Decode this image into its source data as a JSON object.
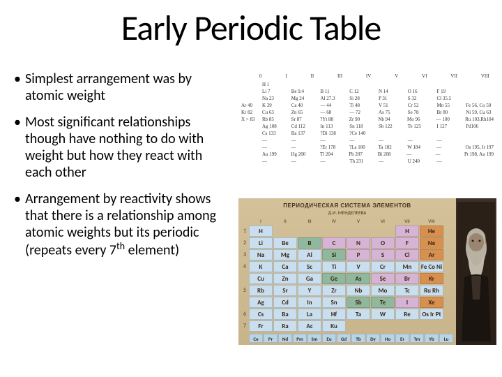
{
  "title": "Early Periodic Table",
  "bullets": [
    "Simplest arrangement was by atomic weight",
    "Most significant relationships though have nothing to do with weight but how they react with each other",
    "Arrangement by reactivity shows that there is a relationship among atomic weights but its periodic (repeats every 7__SUP__th__END__ element)"
  ],
  "early_table": {
    "headers": [
      "0",
      "I",
      "II",
      "III",
      "IV",
      "V",
      "VI",
      "VII",
      "VIII"
    ],
    "rows": [
      [
        "",
        "H 1",
        "",
        "",
        "",
        "",
        "",
        "",
        ""
      ],
      [
        "",
        "Li 7",
        "Be 9.4",
        "B 11",
        "C 12",
        "N 14",
        "O 16",
        "F 19",
        ""
      ],
      [
        "",
        "Na 23",
        "Mg 24",
        "Al 27.3",
        "Si 28",
        "P 31",
        "S 32",
        "Cl 35.5",
        ""
      ],
      [
        "Ar 40",
        "K 39",
        "Ca 40",
        "— 44",
        "Ti 48",
        "V 51",
        "Cr 52",
        "Mn 55",
        "Fe 56, Co 59"
      ],
      [
        "Kr 82",
        "Cu 63",
        "Zn 65",
        "— 68",
        "— 72",
        "As 75",
        "Se 78",
        "Br 80",
        "Ni 59, Cu 63"
      ],
      [
        "X > 83",
        "Rb 85",
        "Sr 87",
        "?Yt 88",
        "Zr 90",
        "Nb 94",
        "Mo 96",
        "— 100",
        "Ru 103,Rh104"
      ],
      [
        "",
        "Ag 108",
        "Cd 112",
        "In 113",
        "Sn 118",
        "Sb 122",
        "Te 125",
        "I 127",
        "Pd106"
      ],
      [
        "",
        "Cs 133",
        "Ba 137",
        "?Di 138",
        "?Ce 140",
        "",
        "",
        "",
        ""
      ],
      [
        "",
        "—",
        "—",
        "—",
        "—",
        "—",
        "—",
        "—",
        ""
      ],
      [
        "",
        "—",
        "—",
        "?Er 178",
        "?La 180",
        "Ta 182",
        "W 184",
        "—",
        "Os 195, Ir 197"
      ],
      [
        "",
        "Au 199",
        "Hg 200",
        "Tl 204",
        "Pb 207",
        "Bi 208",
        "—",
        "—",
        "Pt 198, Au 199"
      ],
      [
        "",
        "—",
        "—",
        "—",
        "Th 231",
        "—",
        "U 240",
        "—",
        ""
      ]
    ]
  },
  "color_table": {
    "title": "ПЕРИОДИЧЕСКАЯ СИСТЕМА ЭЛЕМЕНТОВ",
    "subtitle": "Д.И. МЕНДЕЛЕЕВА",
    "group_headers": [
      "I",
      "II",
      "III",
      "IV",
      "V",
      "VI",
      "VII",
      "VIII"
    ],
    "rows": [
      {
        "n": "1",
        "cells": [
          {
            "s": "H",
            "c": "#c9dff0"
          },
          {
            "s": "",
            "c": ""
          },
          {
            "s": "",
            "c": ""
          },
          {
            "s": "",
            "c": ""
          },
          {
            "s": "",
            "c": ""
          },
          {
            "s": "",
            "c": ""
          },
          {
            "s": "H",
            "c": "#d5b4d5"
          },
          {
            "s": "He",
            "c": "#d89050"
          }
        ]
      },
      {
        "n": "2",
        "cells": [
          {
            "s": "Li",
            "c": "#c9dff0"
          },
          {
            "s": "Be",
            "c": "#c9dff0"
          },
          {
            "s": "B",
            "c": "#8fb89f"
          },
          {
            "s": "C",
            "c": "#d5b4d5"
          },
          {
            "s": "N",
            "c": "#d5b4d5"
          },
          {
            "s": "O",
            "c": "#d5b4d5"
          },
          {
            "s": "F",
            "c": "#d5b4d5"
          },
          {
            "s": "Ne",
            "c": "#d89050"
          }
        ]
      },
      {
        "n": "3",
        "cells": [
          {
            "s": "Na",
            "c": "#c9dff0"
          },
          {
            "s": "Mg",
            "c": "#c9dff0"
          },
          {
            "s": "Al",
            "c": "#c9dff0"
          },
          {
            "s": "Si",
            "c": "#8fb89f"
          },
          {
            "s": "P",
            "c": "#d5b4d5"
          },
          {
            "s": "S",
            "c": "#d5b4d5"
          },
          {
            "s": "Cl",
            "c": "#d5b4d5"
          },
          {
            "s": "Ar",
            "c": "#d89050"
          }
        ]
      },
      {
        "n": "4",
        "cells": [
          {
            "s": "K",
            "c": "#c9dff0"
          },
          {
            "s": "Ca",
            "c": "#c9dff0"
          },
          {
            "s": "Sc",
            "c": "#c9dff0"
          },
          {
            "s": "Ti",
            "c": "#c9dff0"
          },
          {
            "s": "V",
            "c": "#c9dff0"
          },
          {
            "s": "Cr",
            "c": "#c9dff0"
          },
          {
            "s": "Mn",
            "c": "#c9dff0"
          },
          {
            "s": "Fe Co Ni",
            "c": "#c9dff0"
          }
        ]
      },
      {
        "n": "",
        "cells": [
          {
            "s": "Cu",
            "c": "#c9dff0"
          },
          {
            "s": "Zn",
            "c": "#c9dff0"
          },
          {
            "s": "Ga",
            "c": "#c9dff0"
          },
          {
            "s": "Ge",
            "c": "#8fb89f"
          },
          {
            "s": "As",
            "c": "#8fb89f"
          },
          {
            "s": "Se",
            "c": "#d5b4d5"
          },
          {
            "s": "Br",
            "c": "#d5b4d5"
          },
          {
            "s": "Kr",
            "c": "#d89050"
          }
        ]
      },
      {
        "n": "5",
        "cells": [
          {
            "s": "Rb",
            "c": "#c9dff0"
          },
          {
            "s": "Sr",
            "c": "#c9dff0"
          },
          {
            "s": "Y",
            "c": "#c9dff0"
          },
          {
            "s": "Zr",
            "c": "#c9dff0"
          },
          {
            "s": "Nb",
            "c": "#c9dff0"
          },
          {
            "s": "Mo",
            "c": "#c9dff0"
          },
          {
            "s": "Tc",
            "c": "#c9dff0"
          },
          {
            "s": "Ru Rh Pd",
            "c": "#c9dff0"
          }
        ]
      },
      {
        "n": "",
        "cells": [
          {
            "s": "Ag",
            "c": "#c9dff0"
          },
          {
            "s": "Cd",
            "c": "#c9dff0"
          },
          {
            "s": "In",
            "c": "#c9dff0"
          },
          {
            "s": "Sn",
            "c": "#c9dff0"
          },
          {
            "s": "Sb",
            "c": "#8fb89f"
          },
          {
            "s": "Te",
            "c": "#8fb89f"
          },
          {
            "s": "I",
            "c": "#d5b4d5"
          },
          {
            "s": "Xe",
            "c": "#d89050"
          }
        ]
      },
      {
        "n": "6",
        "cells": [
          {
            "s": "Cs",
            "c": "#c9dff0"
          },
          {
            "s": "Ba",
            "c": "#c9dff0"
          },
          {
            "s": "La",
            "c": "#c9dff0"
          },
          {
            "s": "Hf",
            "c": "#c9dff0"
          },
          {
            "s": "Ta",
            "c": "#c9dff0"
          },
          {
            "s": "W",
            "c": "#c9dff0"
          },
          {
            "s": "Re",
            "c": "#c9dff0"
          },
          {
            "s": "Os Ir Pt",
            "c": "#c9dff0"
          }
        ]
      },
      {
        "n": "7",
        "cells": [
          {
            "s": "Fr",
            "c": "#c9dff0"
          },
          {
            "s": "Ra",
            "c": "#c9dff0"
          },
          {
            "s": "Ac",
            "c": "#c9dff0"
          },
          {
            "s": "Ku",
            "c": "#c9dff0"
          },
          {
            "s": "",
            "c": ""
          },
          {
            "s": "",
            "c": ""
          },
          {
            "s": "",
            "c": ""
          },
          {
            "s": "",
            "c": ""
          }
        ]
      }
    ],
    "lanthanides": [
      "Ce",
      "Pr",
      "Nd",
      "Pm",
      "Sm",
      "Eu",
      "Gd",
      "Tb",
      "Dy",
      "Ho",
      "Er",
      "Tm",
      "Yb",
      "Lu"
    ],
    "lan_color": "#b8d4e8"
  },
  "colors": {
    "background": "#ffffff",
    "text": "#000000",
    "early_text": "#333333",
    "color_table_bg": "#c9b48a",
    "color_table_border": "#5a4a3a",
    "portrait_bg": "#2a2018"
  }
}
